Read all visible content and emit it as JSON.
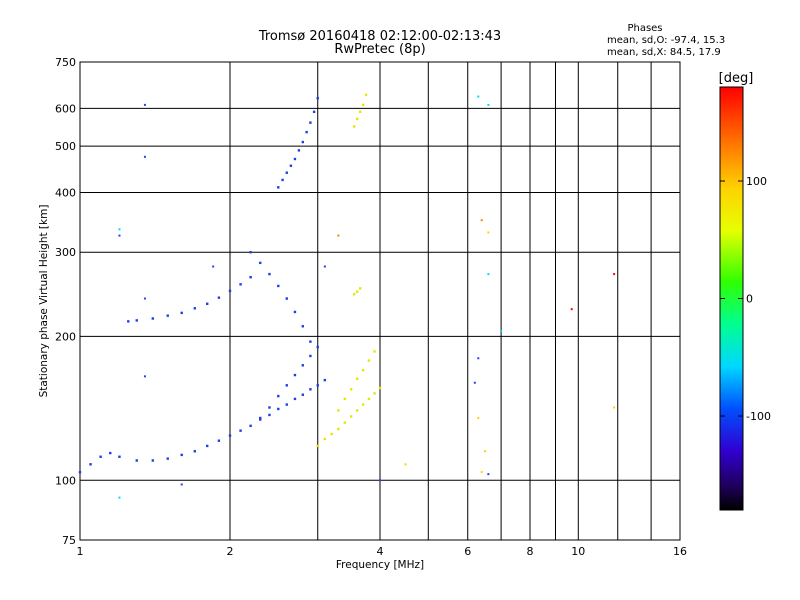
{
  "chart_data": {
    "type": "scatter",
    "title": "Tromsø 20160418 02:12:00-02:13:43",
    "subtitle": "RwPretec (8p)",
    "xlabel": "Frequency [MHz]",
    "ylabel": "Stationary phase Virtual Height [km]",
    "x_scale": "log",
    "y_scale": "log",
    "xlim": [
      1,
      16
    ],
    "ylim": [
      75,
      750
    ],
    "x_ticks": [
      1,
      2,
      4,
      6,
      8,
      10,
      16
    ],
    "x_tick_labels": [
      "1",
      "2",
      "4",
      "6",
      "8",
      "10",
      "16"
    ],
    "x_minor_ticks": [
      3,
      5,
      7,
      9,
      12,
      14
    ],
    "y_ticks": [
      75,
      100,
      200,
      300,
      400,
      500,
      600,
      750
    ],
    "y_tick_labels": [
      "75",
      "100",
      "200",
      "300",
      "400",
      "500",
      "600",
      "750"
    ],
    "grid": true,
    "phase_info": {
      "heading": "Phases",
      "line_o": "mean, sd,O: -97.4, 15.3",
      "line_x": "mean, sd,X:  84.5, 17.9"
    },
    "colorbar": {
      "label": "[deg]",
      "range": [
        -180,
        180
      ],
      "ticks": [
        100,
        0,
        -100
      ],
      "tick_labels": [
        "100",
        "0",
        "-100"
      ],
      "colormap": "rainbow"
    },
    "series": [
      {
        "name": "O",
        "phase_mean": -97.4,
        "phase_sd": 15.3,
        "color": "#1f3fe6",
        "traces": [
          {
            "x": [
              1.0,
              1.05,
              1.1,
              1.15,
              1.2,
              1.3,
              1.4,
              1.5,
              1.6,
              1.7,
              1.8,
              1.9,
              2.0,
              2.1,
              2.2,
              2.3,
              2.4,
              2.5,
              2.6,
              2.7,
              2.8,
              2.9,
              3.0,
              3.1
            ],
            "y": [
              104,
              108,
              112,
              114,
              112,
              110,
              110,
              111,
              113,
              115,
              118,
              121,
              124,
              127,
              130,
              134,
              137,
              141,
              144,
              148,
              151,
              155,
              158,
              162
            ]
          },
          {
            "x": [
              1.25,
              1.3,
              1.4,
              1.5,
              1.6,
              1.7,
              1.8,
              1.9,
              2.0,
              2.1,
              2.2
            ],
            "y": [
              215,
              216,
              218,
              221,
              224,
              229,
              234,
              241,
              249,
              257,
              266
            ]
          },
          {
            "x": [
              2.5,
              2.55,
              2.6,
              2.65,
              2.7,
              2.75,
              2.8,
              2.85,
              2.9,
              2.95,
              3.0
            ],
            "y": [
              410,
              425,
              440,
              455,
              470,
              490,
              510,
              535,
              560,
              590,
              630
            ]
          },
          {
            "x": [
              2.3,
              2.4,
              2.5,
              2.6,
              2.7,
              2.8,
              2.9,
              3.0
            ],
            "y": [
              135,
              142,
              150,
              158,
              166,
              174,
              182,
              190
            ]
          },
          {
            "x": [
              2.2,
              2.3,
              2.4,
              2.5,
              2.6,
              2.7,
              2.8,
              2.9
            ],
            "y": [
              300,
              285,
              270,
              255,
              240,
              225,
              210,
              195
            ]
          }
        ]
      },
      {
        "name": "X",
        "phase_mean": 84.5,
        "phase_sd": 17.9,
        "color": "#e6e600",
        "traces": [
          {
            "x": [
              3.0,
              3.1,
              3.2,
              3.3,
              3.4,
              3.5,
              3.6,
              3.7,
              3.8,
              3.9,
              4.0
            ],
            "y": [
              118,
              122,
              125,
              128,
              132,
              136,
              140,
              144,
              148,
              152,
              156
            ]
          },
          {
            "x": [
              3.3,
              3.4,
              3.5,
              3.6,
              3.7,
              3.8,
              3.9
            ],
            "y": [
              140,
              148,
              155,
              163,
              170,
              178,
              186
            ]
          },
          {
            "x": [
              3.55,
              3.6,
              3.65,
              3.7,
              3.75
            ],
            "y": [
              550,
              570,
              590,
              610,
              640
            ]
          },
          {
            "x": [
              3.55,
              3.6,
              3.65
            ],
            "y": [
              245,
              248,
              252
            ]
          }
        ]
      }
    ],
    "isolated_points": [
      {
        "x": 1.35,
        "y": 610,
        "phase": -100
      },
      {
        "x": 1.35,
        "y": 475,
        "phase": -100
      },
      {
        "x": 1.2,
        "y": 335,
        "phase": -60
      },
      {
        "x": 1.2,
        "y": 325,
        "phase": -100
      },
      {
        "x": 1.35,
        "y": 240,
        "phase": -100
      },
      {
        "x": 1.35,
        "y": 165,
        "phase": -100
      },
      {
        "x": 1.2,
        "y": 92,
        "phase": -30
      },
      {
        "x": 1.6,
        "y": 98,
        "phase": -100
      },
      {
        "x": 1.85,
        "y": 280,
        "phase": -100
      },
      {
        "x": 3.1,
        "y": 280,
        "phase": -100
      },
      {
        "x": 3.3,
        "y": 325,
        "phase": 150
      },
      {
        "x": 4.0,
        "y": 100,
        "phase": -100
      },
      {
        "x": 4.5,
        "y": 108,
        "phase": 100
      },
      {
        "x": 6.3,
        "y": 635,
        "phase": -40
      },
      {
        "x": 6.6,
        "y": 610,
        "phase": -40
      },
      {
        "x": 6.4,
        "y": 350,
        "phase": 150
      },
      {
        "x": 6.6,
        "y": 330,
        "phase": 100
      },
      {
        "x": 6.6,
        "y": 270,
        "phase": -40
      },
      {
        "x": 6.3,
        "y": 180,
        "phase": -100
      },
      {
        "x": 6.2,
        "y": 160,
        "phase": -100
      },
      {
        "x": 6.3,
        "y": 135,
        "phase": 100
      },
      {
        "x": 6.5,
        "y": 115,
        "phase": 100
      },
      {
        "x": 6.4,
        "y": 104,
        "phase": 100
      },
      {
        "x": 6.6,
        "y": 103,
        "phase": -100
      },
      {
        "x": 7.0,
        "y": 205,
        "phase": -40
      },
      {
        "x": 9.7,
        "y": 228,
        "phase": 170
      },
      {
        "x": 11.8,
        "y": 270,
        "phase": 170
      },
      {
        "x": 11.8,
        "y": 142,
        "phase": 100
      }
    ]
  }
}
